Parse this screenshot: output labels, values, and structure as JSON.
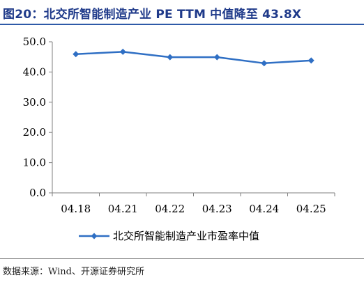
{
  "title": "图20：北交所智能制造产业 PE TTM 中值降至 43.8X",
  "source": "数据来源：Wind、开源证券研究所",
  "chart_data": {
    "type": "line",
    "title": "",
    "xlabel": "",
    "ylabel": "",
    "categories": [
      "04.18",
      "04.21",
      "04.22",
      "04.23",
      "04.24",
      "04.25"
    ],
    "series": [
      {
        "name": "北交所智能制造产业市盈率中值",
        "values": [
          45.9,
          46.7,
          44.9,
          44.9,
          42.9,
          43.8
        ],
        "color": "#2f6fc4"
      }
    ],
    "ylim": [
      0,
      50
    ],
    "yticks": [
      0,
      10,
      20,
      30,
      40,
      50
    ],
    "ytick_labels": [
      "0.0",
      "10.0",
      "20.0",
      "30.0",
      "40.0",
      "50.0"
    ],
    "grid": false,
    "legend_position": "bottom"
  }
}
